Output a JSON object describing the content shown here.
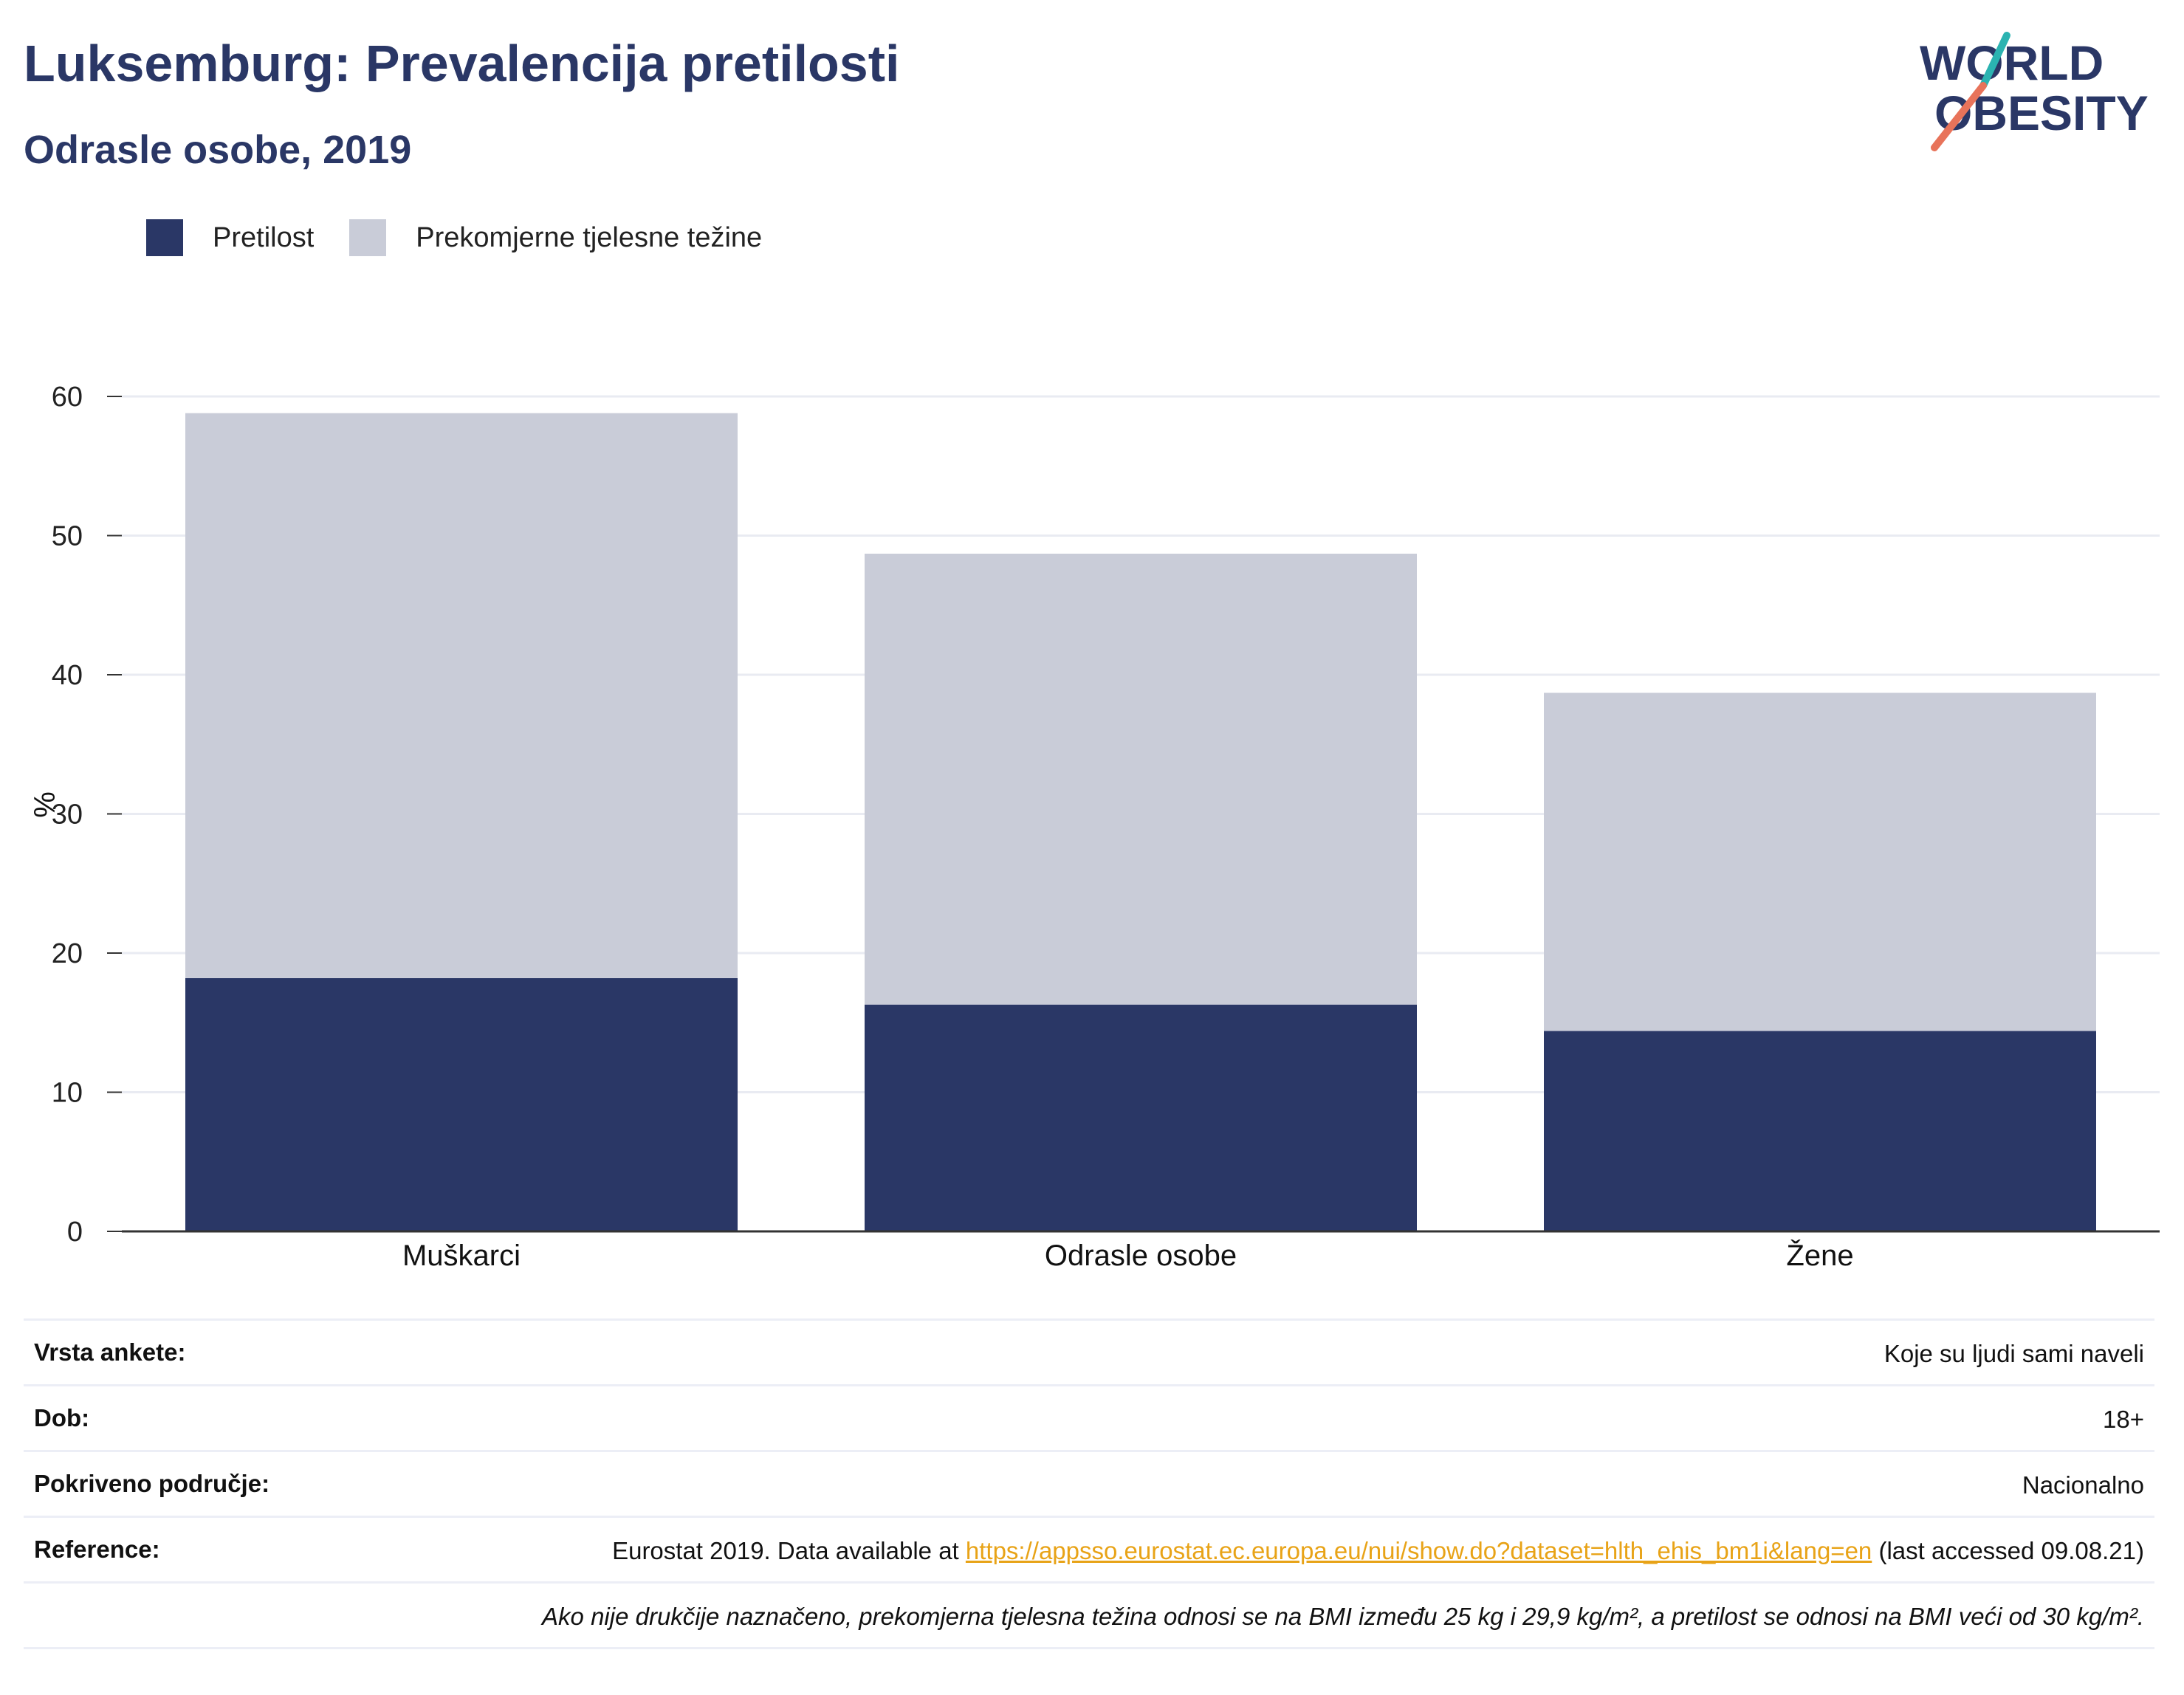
{
  "header": {
    "title": "Luksemburg: Prevalencija pretilosti",
    "subtitle": "Odrasle osobe, 2019"
  },
  "logo": {
    "line1": "WORLD",
    "line2": "OBESITY"
  },
  "colors": {
    "obesity": "#2a3766",
    "overweight": "#c9ccd8",
    "title": "#2a3766",
    "link": "#e8a317"
  },
  "chart_data": {
    "type": "bar",
    "stacked": true,
    "categories": [
      "Muškarci",
      "Odrasle osobe",
      "Žene"
    ],
    "series": [
      {
        "name": "Pretilost",
        "values": [
          18.2,
          16.3,
          14.4
        ]
      },
      {
        "name": "Prekomjerne tjelesne težine",
        "values": [
          40.6,
          32.4,
          24.3
        ]
      }
    ],
    "totals": [
      58.8,
      48.7,
      38.7
    ],
    "ylabel": "%",
    "ylim": [
      0,
      60
    ],
    "yticks": [
      0,
      10,
      20,
      30,
      40,
      50,
      60
    ],
    "grid": true,
    "legend_position": "top-left"
  },
  "info": {
    "survey_label": "Vrsta ankete:",
    "survey_value": "Koje su ljudi sami naveli",
    "age_label": "Dob:",
    "age_value": "18+",
    "coverage_label": "Pokriveno područje:",
    "coverage_value": "Nacionalno",
    "reference_label": "Reference:",
    "reference_prefix": "Eurostat 2019. Data available at ",
    "reference_link": "https://appsso.eurostat.ec.europa.eu/nui/show.do?dataset=hlth_ehis_bm1i&lang=en",
    "reference_suffix": " (last accessed 09.08.21)",
    "note": "Ako nije drukčije naznačeno, prekomjerna tjelesna težina odnosi se na BMI između 25 kg i 29,9 kg/m², a pretilost se odnosi na BMI veći od 30 kg/m²."
  }
}
